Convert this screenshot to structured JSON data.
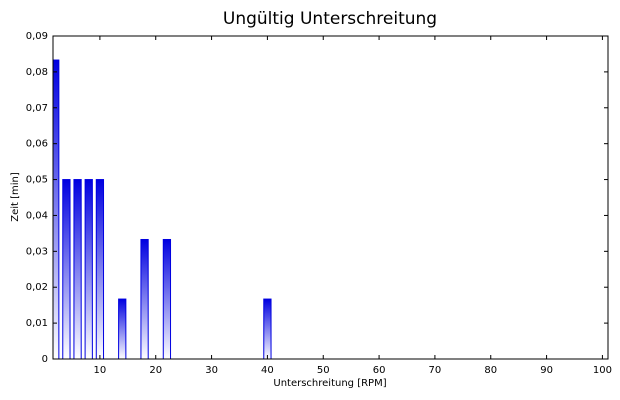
{
  "chart_data": {
    "type": "bar",
    "title": "Ungültig Unterschreitung",
    "x_label": "Unterschreitung [RPM]",
    "y_label": "Zeit [min]",
    "x": [
      2,
      4,
      6,
      8,
      10,
      14,
      18,
      22,
      40
    ],
    "values": [
      0.0833,
      0.05,
      0.05,
      0.05,
      0.05,
      0.0167,
      0.0333,
      0.0333,
      0.0167
    ],
    "color": "#0000e0",
    "xlim": [
      1.6,
      101
    ],
    "xticks": [
      10,
      20,
      30,
      40,
      50,
      60,
      70,
      80,
      90,
      100
    ],
    "ylim": [
      0,
      0.09
    ],
    "yticks": [
      0,
      {
        "value": 0.01,
        "label": "0,01"
      },
      {
        "value": 0.02,
        "label": "0,02"
      },
      {
        "value": 0.03,
        "label": "0,03"
      },
      {
        "value": 0.04,
        "label": "0,04"
      },
      {
        "value": 0.05,
        "label": "0,05"
      },
      {
        "value": 0.06,
        "label": "0,06"
      },
      {
        "value": 0.07,
        "label": "0,07"
      },
      {
        "value": 0.08,
        "label": "0,08"
      },
      {
        "value": 0.09,
        "label": "0,09"
      }
    ],
    "grid": false
  }
}
